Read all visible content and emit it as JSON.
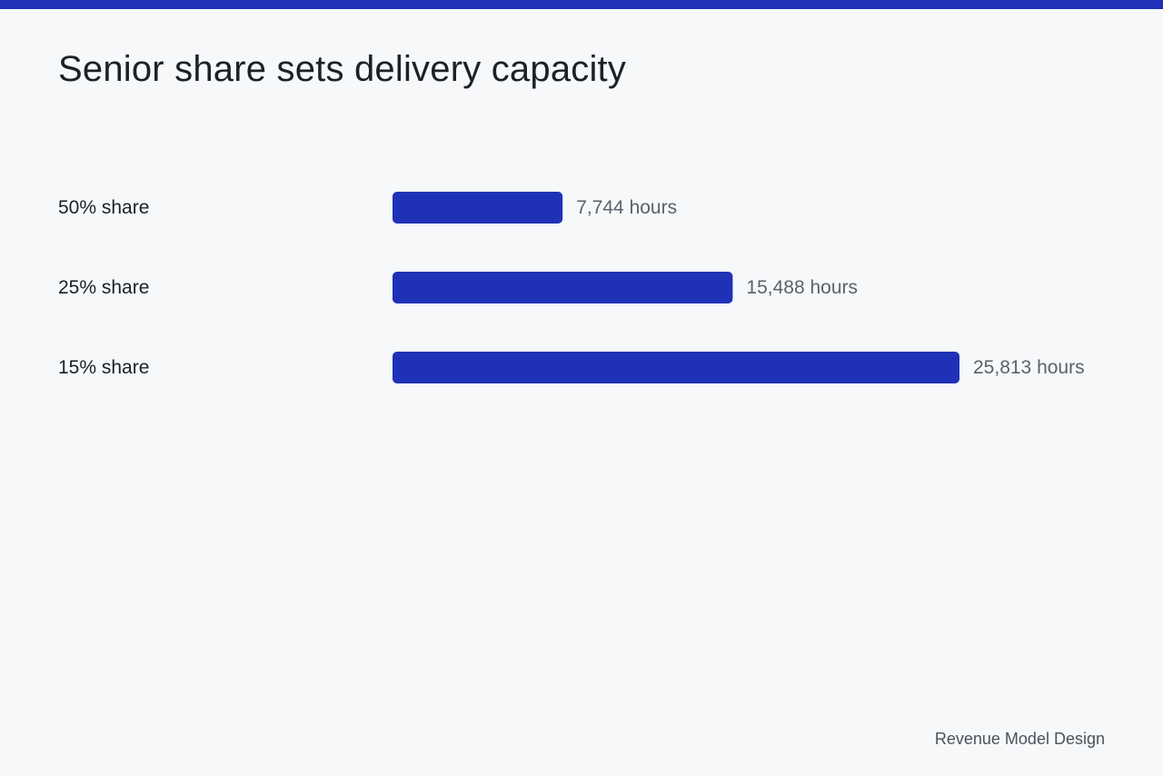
{
  "page": {
    "title": "Senior share sets delivery capacity",
    "footer": "Revenue Model Design",
    "accent_color": "#1f32b7",
    "background_color": "#f6f8fa"
  },
  "chart_data": {
    "type": "bar",
    "orientation": "horizontal",
    "title": "Senior share sets delivery capacity",
    "categories": [
      "50% share",
      "25% share",
      "15% share"
    ],
    "values": [
      7744,
      15488,
      25813
    ],
    "value_labels": [
      "7,744 hours",
      "15,488 hours",
      "25,813 hours"
    ],
    "bar_color": "#1f32b7",
    "xlabel": "",
    "ylabel": "",
    "grid": false,
    "legend": "none"
  }
}
